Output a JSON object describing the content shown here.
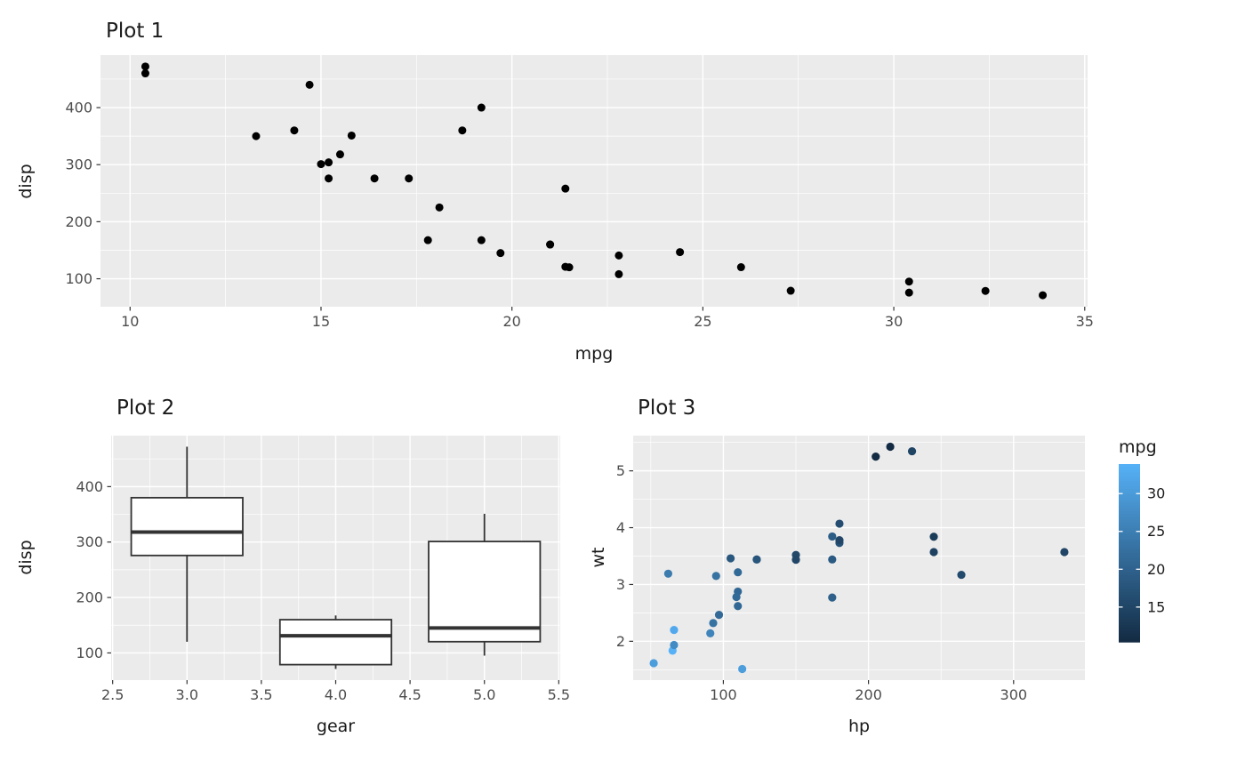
{
  "figure": {
    "background": "#ffffff",
    "panel_color": "#ebebeb",
    "grid_color": "#ffffff",
    "tick_label_color": "#4d4d4d",
    "tick_mark_color": "#333333",
    "point_color": "#000000",
    "box_stroke_color": "#333333",
    "text_color": "#1a1a1a"
  },
  "chart_data": [
    {
      "type": "scatter",
      "title": "Plot 1",
      "xlabel": "mpg",
      "ylabel": "disp",
      "xlim": [
        9.225,
        35.075
      ],
      "ylim": [
        51,
        492
      ],
      "xticks": [
        10,
        15,
        20,
        25,
        30,
        35
      ],
      "xtick_labels": [
        "10",
        "15",
        "20",
        "25",
        "30",
        "35"
      ],
      "xminor": [
        12.5,
        17.5,
        22.5,
        27.5,
        32.5
      ],
      "yticks": [
        100,
        200,
        300,
        400
      ],
      "ytick_labels": [
        "100",
        "200",
        "300",
        "400"
      ],
      "yminor": [
        150,
        250,
        350,
        450
      ],
      "grid": true,
      "legend": "none",
      "points": [
        [
          21.0,
          160
        ],
        [
          21.0,
          160
        ],
        [
          22.8,
          108
        ],
        [
          21.4,
          258
        ],
        [
          18.7,
          360
        ],
        [
          18.1,
          225
        ],
        [
          14.3,
          360
        ],
        [
          24.4,
          146.7
        ],
        [
          22.8,
          140.8
        ],
        [
          19.2,
          167.6
        ],
        [
          17.8,
          167.6
        ],
        [
          16.4,
          275.8
        ],
        [
          17.3,
          275.8
        ],
        [
          15.2,
          275.8
        ],
        [
          10.4,
          472
        ],
        [
          10.4,
          460
        ],
        [
          14.7,
          440
        ],
        [
          32.4,
          78.7
        ],
        [
          30.4,
          75.7
        ],
        [
          33.9,
          71.1
        ],
        [
          21.5,
          120.1
        ],
        [
          15.5,
          318
        ],
        [
          15.2,
          304
        ],
        [
          13.3,
          350
        ],
        [
          19.2,
          400
        ],
        [
          27.3,
          79
        ],
        [
          26.0,
          120.3
        ],
        [
          30.4,
          95.1
        ],
        [
          15.8,
          351
        ],
        [
          19.7,
          145
        ],
        [
          15.0,
          301
        ],
        [
          21.4,
          121
        ]
      ]
    },
    {
      "type": "boxplot",
      "title": "Plot 2",
      "xlabel": "gear",
      "ylabel": "disp",
      "xlim": [
        2.49,
        5.51
      ],
      "ylim": [
        51,
        492
      ],
      "xticks": [
        2.5,
        3.0,
        3.5,
        4.0,
        4.5,
        5.0,
        5.5
      ],
      "xtick_labels": [
        "2.5",
        "3.0",
        "3.5",
        "4.0",
        "4.5",
        "5.0",
        "5.5"
      ],
      "xminor": [
        2.75,
        3.25,
        3.75,
        4.25,
        4.75,
        5.25
      ],
      "yticks": [
        100,
        200,
        300,
        400
      ],
      "ytick_labels": [
        "100",
        "200",
        "300",
        "400"
      ],
      "yminor": [
        150,
        250,
        350,
        450
      ],
      "grid": true,
      "legend": "none",
      "boxes": [
        {
          "x": 3,
          "width": 0.75,
          "min": 120.1,
          "q1": 275.8,
          "median": 318,
          "q3": 380,
          "max": 472
        },
        {
          "x": 4,
          "width": 0.75,
          "min": 71.1,
          "q1": 78.9,
          "median": 130.9,
          "q3": 160,
          "max": 167.6
        },
        {
          "x": 5,
          "width": 0.75,
          "min": 95.1,
          "q1": 120.3,
          "median": 145,
          "q3": 301,
          "max": 351
        }
      ]
    },
    {
      "type": "scatter",
      "title": "Plot 3",
      "xlabel": "hp",
      "ylabel": "wt",
      "xlim": [
        37.85,
        349.15
      ],
      "ylim": [
        1.317,
        5.62
      ],
      "xticks": [
        100,
        200,
        300
      ],
      "xtick_labels": [
        "100",
        "200",
        "300"
      ],
      "xminor": [
        50,
        150,
        250
      ],
      "yticks": [
        2,
        3,
        4,
        5
      ],
      "ytick_labels": [
        "2",
        "3",
        "4",
        "5"
      ],
      "yminor": [
        1.5,
        2.5,
        3.5,
        4.5,
        5.5
      ],
      "grid": true,
      "legend": "colorbar-right",
      "color_scale": {
        "label": "mpg",
        "low": "#132b43",
        "high": "#56b1f7",
        "domain": [
          10.4,
          33.9
        ],
        "ticks": [
          15,
          20,
          25,
          30
        ],
        "tick_labels": [
          "15",
          "20",
          "25",
          "30"
        ]
      },
      "points": [
        [
          110,
          2.62,
          21.0
        ],
        [
          110,
          2.875,
          21.0
        ],
        [
          93,
          2.32,
          22.8
        ],
        [
          110,
          3.215,
          21.4
        ],
        [
          175,
          3.44,
          18.7
        ],
        [
          105,
          3.46,
          18.1
        ],
        [
          245,
          3.57,
          14.3
        ],
        [
          62,
          3.19,
          24.4
        ],
        [
          95,
          3.15,
          22.8
        ],
        [
          123,
          3.44,
          19.2
        ],
        [
          123,
          3.44,
          17.8
        ],
        [
          180,
          4.07,
          16.4
        ],
        [
          180,
          3.73,
          17.3
        ],
        [
          180,
          3.78,
          15.2
        ],
        [
          205,
          5.25,
          10.4
        ],
        [
          215,
          5.424,
          10.4
        ],
        [
          230,
          5.345,
          14.7
        ],
        [
          66,
          2.2,
          32.4
        ],
        [
          52,
          1.615,
          30.4
        ],
        [
          65,
          1.835,
          33.9
        ],
        [
          97,
          2.465,
          21.5
        ],
        [
          150,
          3.52,
          15.5
        ],
        [
          150,
          3.435,
          15.2
        ],
        [
          245,
          3.84,
          13.3
        ],
        [
          175,
          3.845,
          19.2
        ],
        [
          66,
          1.935,
          27.3
        ],
        [
          91,
          2.14,
          26.0
        ],
        [
          113,
          1.513,
          30.4
        ],
        [
          264,
          3.17,
          15.8
        ],
        [
          175,
          2.77,
          19.7
        ],
        [
          335,
          3.57,
          15.0
        ],
        [
          109,
          2.78,
          21.4
        ]
      ]
    }
  ]
}
